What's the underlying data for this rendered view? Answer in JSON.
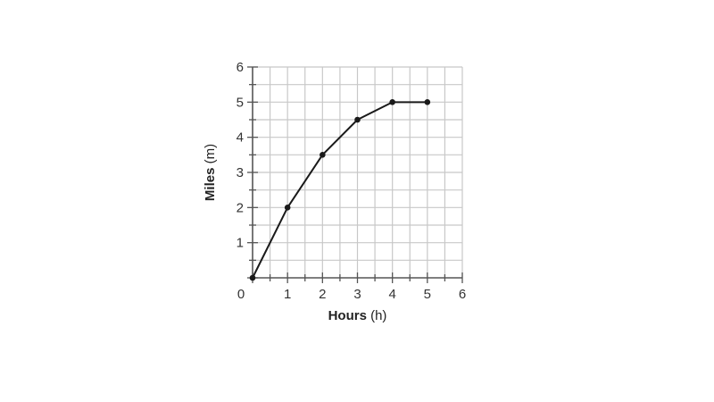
{
  "chart_data": {
    "type": "line",
    "x": [
      0,
      1,
      2,
      3,
      4,
      5
    ],
    "series": [
      {
        "values": [
          0,
          2,
          3.5,
          4.5,
          5,
          5
        ]
      }
    ],
    "xlabel": {
      "main": "Hours",
      "unit": " (h)"
    },
    "ylabel": {
      "main": "Miles",
      "unit": " (m)"
    },
    "xlim": [
      0,
      6
    ],
    "ylim": [
      0,
      6
    ],
    "x_ticks": [
      "0",
      "1",
      "2",
      "3",
      "4",
      "5",
      "6"
    ],
    "y_ticks": [
      "1",
      "2",
      "3",
      "4",
      "5",
      "6"
    ],
    "grid": true,
    "grid_minor_step": 0.5,
    "colors": {
      "line": "#1a1a1a",
      "grid": "#c8c8c8",
      "axis": "#555555"
    }
  }
}
